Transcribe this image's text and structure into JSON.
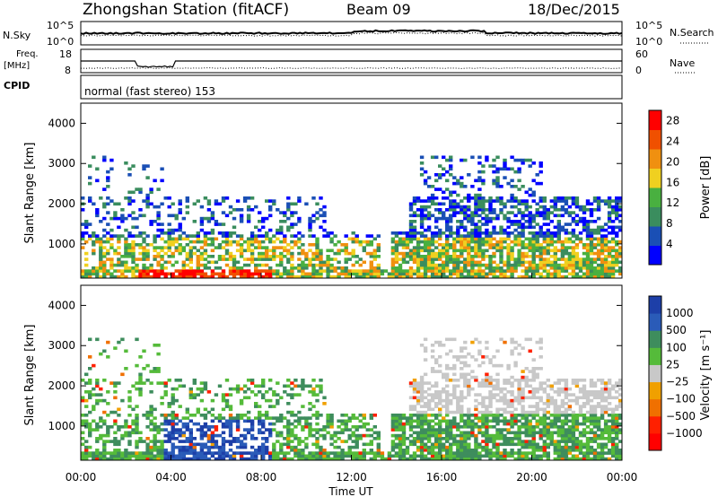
{
  "header": {
    "station": "Zhongshan Station (fitACF)",
    "beam": "Beam 09",
    "date": "18/Dec/2015"
  },
  "strip_labels": {
    "nsky": "N.Sky",
    "nsearch": "N.Search",
    "freq_line1": "Freq.",
    "freq_line2": "[MHz]",
    "nave": "Nave",
    "cpid": "CPID"
  },
  "strip_ticks": {
    "noise_left_top": "10^5",
    "noise_left_bottom": "10^0",
    "noise_right_top": "10^5",
    "noise_right_bottom": "10^0",
    "freq_left_top": "18",
    "freq_left_bottom": "8",
    "nave_right_top": "60",
    "nave_right_bottom": "0"
  },
  "cpid_text": "normal (fast stereo) 153",
  "colors": {
    "power": [
      "#0000ff",
      "#1a4fb5",
      "#3a8d5e",
      "#49b040",
      "#f0d020",
      "#f09010",
      "#f05000",
      "#ff0000"
    ],
    "velocity": [
      "#1d3fa8",
      "#2a5bb8",
      "#3e8d5d",
      "#55bb3a",
      "#c8c8c8",
      "#f0a000",
      "#f07000",
      "#ff2000",
      "#ff0000"
    ]
  },
  "chart_data": [
    {
      "type": "heatmap",
      "name": "power",
      "ylabel": "Slant Range [km]",
      "y_ticks": [
        "1000",
        "2000",
        "3000",
        "4000"
      ],
      "ylim": [
        150,
        4500
      ],
      "x_ticks": [
        "00:00",
        "04:00",
        "08:00",
        "12:00",
        "16:00",
        "20:00",
        "00:00"
      ],
      "xlim_hours": [
        0,
        24
      ],
      "colorbar_label": "Power [dB]",
      "colorbar_ticks": [
        "4",
        "8",
        "12",
        "16",
        "20",
        "24",
        "28"
      ],
      "colorbar_range": [
        0,
        30
      ]
    },
    {
      "type": "heatmap",
      "name": "velocity",
      "ylabel": "Slant Range [km]",
      "y_ticks": [
        "1000",
        "2000",
        "3000",
        "4000"
      ],
      "ylim": [
        150,
        4500
      ],
      "x_ticks": [
        "00:00",
        "04:00",
        "08:00",
        "12:00",
        "16:00",
        "20:00",
        "00:00"
      ],
      "xlabel": "Time UT",
      "xlim_hours": [
        0,
        24
      ],
      "colorbar_label": "Velocity [m s⁻¹]",
      "colorbar_ticks": [
        "1000",
        "500",
        "100",
        "25",
        "−25",
        "−100",
        "−500",
        "−1000"
      ]
    }
  ]
}
